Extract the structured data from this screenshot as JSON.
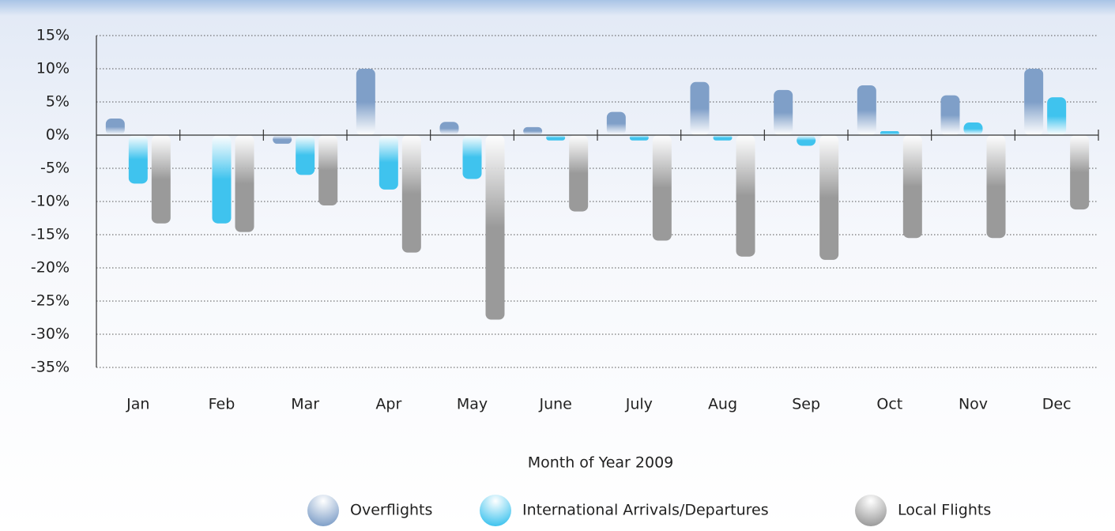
{
  "chart_data": {
    "type": "bar",
    "x_label": "Month of Year 2009",
    "categories": [
      "Jan",
      "Feb",
      "Mar",
      "Apr",
      "May",
      "June",
      "July",
      "Aug",
      "Sep",
      "Oct",
      "Nov",
      "Dec"
    ],
    "series": [
      {
        "name": "Overflights",
        "color": "#7f9fc8",
        "values": [
          2.5,
          0,
          -1.3,
          10,
          2,
          1.2,
          3.5,
          8,
          6.8,
          7.5,
          6,
          10
        ]
      },
      {
        "name": "International Arrivals/Departures",
        "color": "#3fc3ee",
        "values": [
          -7.3,
          -13.3,
          -6,
          -8.2,
          -6.6,
          -0.8,
          -0.8,
          -0.8,
          -1.6,
          0.6,
          1.9,
          5.7
        ]
      },
      {
        "name": "Local Flights",
        "color": "#9a9a9a",
        "values": [
          -13.3,
          -14.6,
          -10.6,
          -17.7,
          -27.8,
          -11.5,
          -15.9,
          -18.3,
          -18.8,
          -15.5,
          -15.5,
          -11.2
        ]
      }
    ],
    "ylim": [
      -35,
      15
    ],
    "yticks": [
      {
        "value": -35,
        "label": "-35%"
      },
      {
        "value": -30,
        "label": "-30%"
      },
      {
        "value": -25,
        "label": "-25%"
      },
      {
        "value": -20,
        "label": "-20%"
      },
      {
        "value": -15,
        "label": "-15%"
      },
      {
        "value": -10,
        "label": "-10%"
      },
      {
        "value": -5,
        "label": "-5%"
      },
      {
        "value": 0,
        "label": "0%"
      },
      {
        "value": 5,
        "label": "5%"
      },
      {
        "value": 10,
        "label": "10%"
      },
      {
        "value": 15,
        "label": "15%"
      }
    ],
    "grid": true
  }
}
